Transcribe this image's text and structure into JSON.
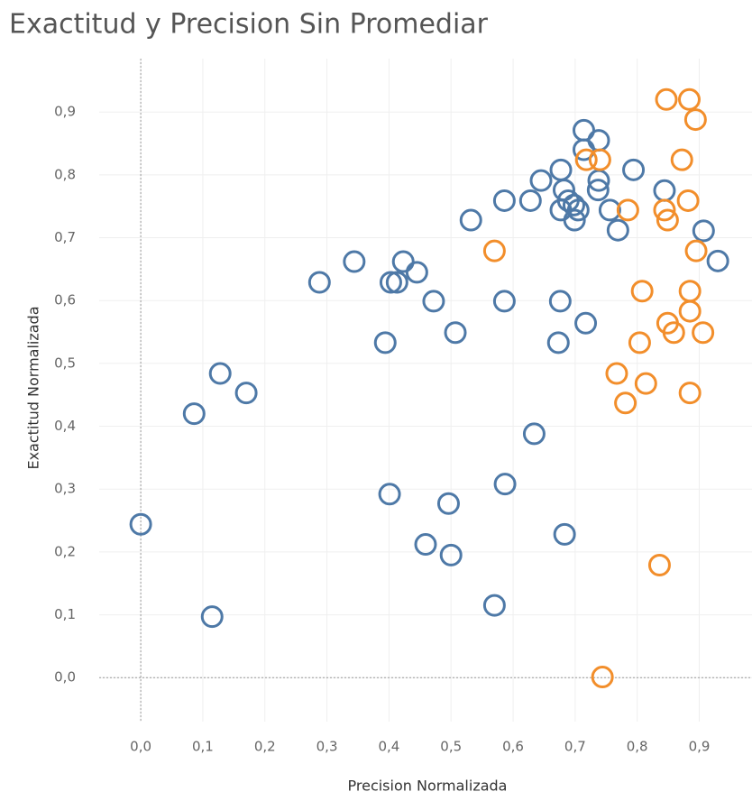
{
  "chart_data": {
    "type": "scatter",
    "title": "Exactitud y Precision Sin Promediar",
    "x_label": "Precision Normalizada",
    "y_label": "Exactitud Normalizada",
    "xlim": [
      -0.067,
      0.985
    ],
    "ylim": [
      -0.07,
      0.985
    ],
    "grid": true,
    "zero_lines": true,
    "xticks": [
      {
        "value": 0,
        "label": "0,0"
      },
      {
        "value": 0.1,
        "label": "0,1"
      },
      {
        "value": 0.2,
        "label": "0,2"
      },
      {
        "value": 0.3,
        "label": "0,3"
      },
      {
        "value": 0.4,
        "label": "0,4"
      },
      {
        "value": 0.5,
        "label": "0,5"
      },
      {
        "value": 0.6,
        "label": "0,6"
      },
      {
        "value": 0.7,
        "label": "0,7"
      },
      {
        "value": 0.8,
        "label": "0,8"
      },
      {
        "value": 0.9,
        "label": "0,9"
      }
    ],
    "yticks": [
      {
        "value": 0,
        "label": "0,0"
      },
      {
        "value": 0.1,
        "label": "0,1"
      },
      {
        "value": 0.2,
        "label": "0,2"
      },
      {
        "value": 0.3,
        "label": "0,3"
      },
      {
        "value": 0.4,
        "label": "0,4"
      },
      {
        "value": 0.5,
        "label": "0,5"
      },
      {
        "value": 0.6,
        "label": "0,6"
      },
      {
        "value": 0.7,
        "label": "0,7"
      },
      {
        "value": 0.8,
        "label": "0,8"
      },
      {
        "value": 0.9,
        "label": "0,9"
      }
    ],
    "series": [
      {
        "color": "#4e79a7",
        "x": [
          0.0,
          0.115,
          0.086,
          0.128,
          0.17,
          0.288,
          0.344,
          0.394,
          0.403,
          0.413,
          0.423,
          0.445,
          0.472,
          0.507,
          0.532,
          0.586,
          0.586,
          0.628,
          0.645,
          0.677,
          0.682,
          0.689,
          0.698,
          0.677,
          0.699,
          0.705,
          0.714,
          0.714,
          0.738,
          0.738,
          0.737,
          0.756,
          0.769,
          0.794,
          0.844,
          0.907,
          0.93,
          0.676,
          0.673,
          0.717,
          0.634,
          0.587,
          0.496,
          0.401,
          0.459,
          0.5,
          0.683,
          0.57
        ],
        "values": [
          0.244,
          0.097,
          0.42,
          0.484,
          0.453,
          0.629,
          0.662,
          0.533,
          0.629,
          0.629,
          0.662,
          0.645,
          0.599,
          0.549,
          0.728,
          0.759,
          0.599,
          0.759,
          0.791,
          0.808,
          0.776,
          0.759,
          0.752,
          0.744,
          0.728,
          0.744,
          0.871,
          0.84,
          0.855,
          0.791,
          0.776,
          0.744,
          0.712,
          0.808,
          0.775,
          0.711,
          0.663,
          0.599,
          0.533,
          0.564,
          0.388,
          0.308,
          0.277,
          0.292,
          0.212,
          0.195,
          0.228,
          0.115
        ]
      },
      {
        "color": "#f28e2b",
        "x": [
          0.847,
          0.884,
          0.894,
          0.872,
          0.718,
          0.74,
          0.882,
          0.785,
          0.844,
          0.849,
          0.895,
          0.57,
          0.808,
          0.885,
          0.885,
          0.849,
          0.859,
          0.906,
          0.804,
          0.767,
          0.814,
          0.781,
          0.885,
          0.836,
          0.744
        ],
        "values": [
          0.92,
          0.92,
          0.888,
          0.824,
          0.824,
          0.824,
          0.759,
          0.744,
          0.744,
          0.728,
          0.679,
          0.679,
          0.615,
          0.615,
          0.583,
          0.564,
          0.549,
          0.549,
          0.533,
          0.484,
          0.468,
          0.437,
          0.453,
          0.179,
          0.001
        ]
      }
    ]
  }
}
